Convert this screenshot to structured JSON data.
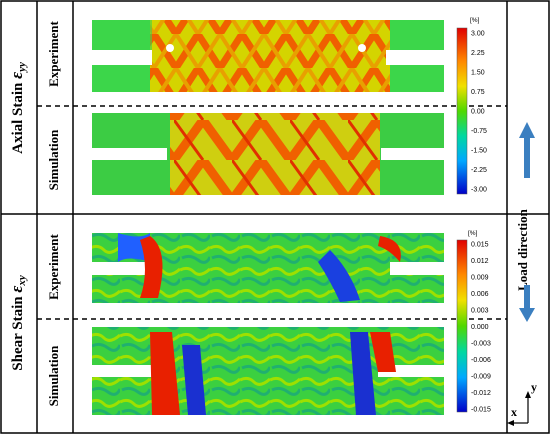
{
  "axial": {
    "title": "Axial Stain",
    "symbol": "ε",
    "subscript": "yy",
    "experiment_label": "Experiment",
    "simulation_label": "Simulation",
    "colorbar": {
      "unit": "[%]",
      "ticks": [
        "3.00",
        "2.25",
        "1.50",
        "0.75",
        "0.00",
        "-0.75",
        "-1.50",
        "-2.25",
        "-3.00"
      ]
    }
  },
  "shear": {
    "title": "Shear Stain",
    "symbol": "ε",
    "subscript": "xy",
    "experiment_label": "Experiment",
    "simulation_label": "Simulation",
    "colorbar": {
      "unit": "[%]",
      "ticks": [
        "0.015",
        "0.012",
        "0.009",
        "0.006",
        "0.003",
        "0.000",
        "-0.003",
        "-0.006",
        "-0.009",
        "-0.012",
        "-0.015"
      ]
    }
  },
  "load_direction_label": "Load direction",
  "axes": {
    "y": "y",
    "x": "x"
  },
  "colors": {
    "arrow": "#3b7fc0",
    "scale_top": "#e00000",
    "scale_mid": "#4dd800",
    "scale_bottom": "#0000c8"
  }
}
